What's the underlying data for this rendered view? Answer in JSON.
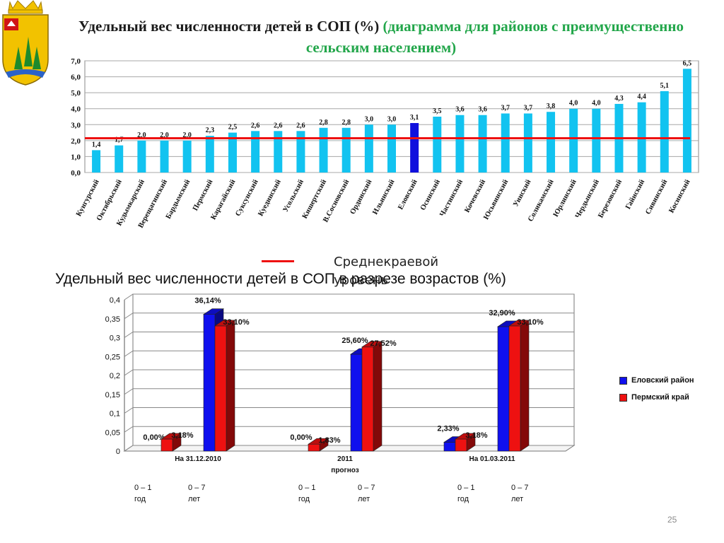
{
  "crest": {
    "icon": "perm-krai-coat-of-arms-icon"
  },
  "title1": {
    "main": "Удельный вес численности детей в СОП (%) ",
    "sub": "(диаграмма для районов с преимущественно сельским населением)"
  },
  "legend1": {
    "label": "Среднекраевой уровень",
    "color": "#ee1111"
  },
  "title2": "Удельный вес численности детей в СОП в разрезе возрастов (%)",
  "chart_data": [
    {
      "type": "bar",
      "categories": [
        "Кунгурский",
        "Октябрьский",
        "Кудымкарский",
        "Верещагинский",
        "Бардымский",
        "Пермский",
        "Карагайский",
        "Суксунский",
        "Куединский",
        "Усольский",
        "Кишертский",
        "В.Сосновский",
        "Ординский",
        "Ильинский",
        "Еловский",
        "Осинский",
        "Частинский",
        "Кочевский",
        "Юсьвинский",
        "Уинский",
        "Соликамский",
        "Юрлинский",
        "Чердынский",
        "Березовский",
        "Гайнский",
        "Сивинский",
        "Косинский"
      ],
      "values": [
        1.4,
        1.7,
        2.0,
        2.0,
        2.0,
        2.3,
        2.5,
        2.6,
        2.6,
        2.6,
        2.8,
        2.8,
        3.0,
        3.0,
        3.1,
        3.5,
        3.6,
        3.6,
        3.7,
        3.7,
        3.8,
        4.0,
        4.0,
        4.3,
        4.4,
        5.1,
        6.5
      ],
      "value_labels": [
        "1,4",
        "1,7",
        "2,0",
        "2,0",
        "2,0",
        "2,3",
        "2,5",
        "2,6",
        "2,6",
        "2,6",
        "2,8",
        "2,8",
        "3,0",
        "3,0",
        "3,1",
        "3,5",
        "3,6",
        "3,6",
        "3,7",
        "3,7",
        "3,8",
        "4,0",
        "4,0",
        "4,3",
        "4,4",
        "5,1",
        "6,5"
      ],
      "highlight_index": 14,
      "average": 2.15,
      "ylim": [
        0,
        7
      ],
      "yticks": [
        "0,0",
        "1,0",
        "2,0",
        "3,0",
        "4,0",
        "5,0",
        "6,0",
        "7,0"
      ],
      "bar_color": "#12c3f0",
      "highlight_color": "#1010dd",
      "average_color": "#ee1111",
      "grid": true
    },
    {
      "type": "bar",
      "groups": [
        {
          "label": "На 31.12.2010",
          "label2": ""
        },
        {
          "label": "2011",
          "label2": "прогноз"
        },
        {
          "label": "На 01.03.2011",
          "label2": ""
        }
      ],
      "subcategories": [
        {
          "line1": "0 – 1",
          "line2": "год"
        },
        {
          "line1": "0 – 7",
          "line2": "лет"
        }
      ],
      "series": [
        {
          "name": "Еловский район",
          "color": "#1010ee",
          "values": [
            0.0,
            0.3614,
            0.0,
            0.256,
            0.0233,
            0.329
          ],
          "labels": [
            "0,00%",
            "36,14%",
            "0,00%",
            "25,60%",
            "2,33%",
            "32,90%"
          ]
        },
        {
          "name": "Пермский край",
          "color": "#ee1111",
          "values": [
            0.0318,
            0.331,
            0.0183,
            0.2752,
            0.0318,
            0.331
          ],
          "labels": [
            "3,18%",
            "33,10%",
            "1,83%",
            "27,52%",
            "3,18%",
            "33,10%"
          ]
        }
      ],
      "ylim": [
        0,
        0.4
      ],
      "yticks": [
        "0",
        "0,05",
        "0,1",
        "0,15",
        "0,2",
        "0,25",
        "0,3",
        "0,35",
        "0,4"
      ],
      "grid": true,
      "legend_position": "right"
    }
  ],
  "page_number": "25"
}
